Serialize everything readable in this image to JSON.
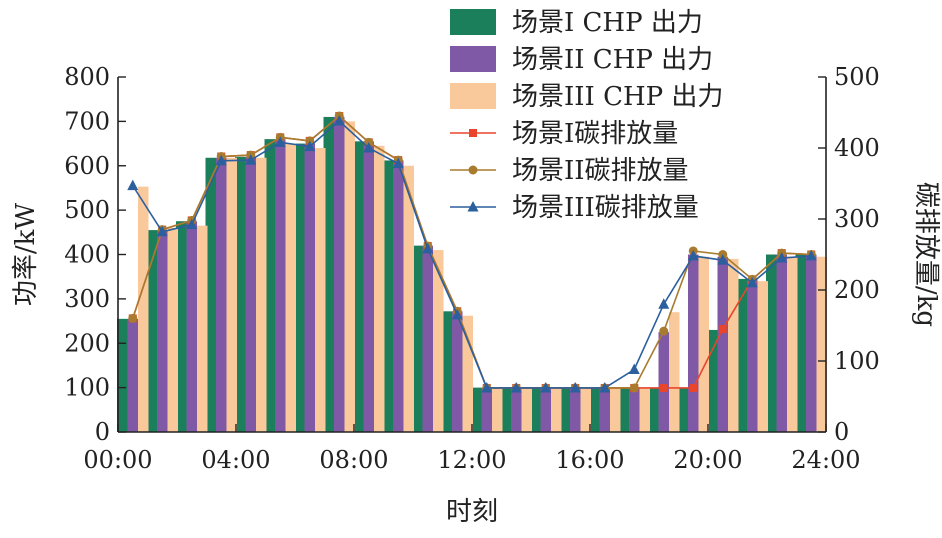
{
  "chart_data": {
    "type": "bar",
    "title": "",
    "xlabel": "时刻",
    "ylabel": "功率/kW",
    "y2label": "碳排放量/kg",
    "ylim": [
      0,
      800
    ],
    "y2lim": [
      0,
      500
    ],
    "yticks": [
      0,
      100,
      200,
      300,
      400,
      500,
      600,
      700,
      800
    ],
    "y2ticks": [
      0,
      100,
      200,
      300,
      400,
      500
    ],
    "xlim": [
      0,
      24
    ],
    "xticks": [
      0,
      4,
      8,
      12,
      16,
      20,
      24
    ],
    "xtick_labels": [
      "00:00",
      "04:00",
      "08:00",
      "12:00",
      "16:00",
      "20:00",
      "24:00"
    ],
    "categories": [
      "1",
      "2",
      "3",
      "4",
      "5",
      "6",
      "7",
      "8",
      "9",
      "10",
      "11",
      "12",
      "13",
      "14",
      "15",
      "16",
      "17",
      "18",
      "19",
      "20",
      "21",
      "22",
      "23",
      "24"
    ],
    "legend_position": "top-right",
    "bar_series": [
      {
        "name": "场景I CHP 出力",
        "color": "#1a7f5a",
        "values": [
          255,
          455,
          475,
          618,
          620,
          660,
          650,
          710,
          655,
          612,
          420,
          272,
          100,
          100,
          100,
          100,
          100,
          100,
          100,
          100,
          230,
          345,
          400,
          400
        ]
      },
      {
        "name": "场景II CHP 出力",
        "color": "#8059a6",
        "values": [
          255,
          455,
          475,
          618,
          620,
          660,
          650,
          710,
          655,
          612,
          420,
          272,
          100,
          100,
          100,
          100,
          100,
          100,
          225,
          400,
          395,
          345,
          400,
          400
        ]
      },
      {
        "name": "场景III CHP 出力",
        "color": "#f9c99b",
        "values": [
          553,
          460,
          465,
          618,
          618,
          650,
          640,
          700,
          645,
          600,
          410,
          262,
          100,
          100,
          100,
          100,
          100,
          100,
          270,
          395,
          390,
          340,
          395,
          395
        ]
      }
    ],
    "line_series": [
      {
        "name": "场景I碳排放量",
        "color": "#e8452c",
        "marker": "square",
        "x": [
          1,
          2,
          3,
          4,
          5,
          6,
          7,
          8,
          9,
          10,
          11,
          12,
          13,
          14,
          15,
          16,
          17,
          18,
          19,
          20,
          21,
          22,
          23,
          24
        ],
        "values": [
          160,
          285,
          298,
          388,
          390,
          415,
          410,
          445,
          408,
          383,
          262,
          170,
          62,
          62,
          62,
          62,
          62,
          62,
          62,
          62,
          145,
          215,
          252,
          250
        ]
      },
      {
        "name": "场景II碳排放量",
        "color": "#a87b2e",
        "marker": "circle",
        "x": [
          1,
          2,
          3,
          4,
          5,
          6,
          7,
          8,
          9,
          10,
          11,
          12,
          13,
          14,
          15,
          16,
          17,
          18,
          19,
          20,
          21,
          22,
          23,
          24
        ],
        "values": [
          160,
          285,
          298,
          388,
          390,
          415,
          410,
          445,
          408,
          383,
          262,
          170,
          62,
          62,
          62,
          62,
          62,
          62,
          142,
          255,
          250,
          215,
          252,
          250
        ]
      },
      {
        "name": "场景III碳排放量",
        "color": "#2b5f9e",
        "marker": "triangle",
        "x": [
          1,
          2,
          3,
          4,
          5,
          6,
          7,
          8,
          9,
          10,
          11,
          12,
          13,
          14,
          15,
          16,
          17,
          18,
          19,
          20,
          21,
          22,
          23,
          24
        ],
        "values": [
          347,
          282,
          292,
          382,
          383,
          408,
          402,
          438,
          400,
          378,
          258,
          165,
          62,
          62,
          62,
          62,
          62,
          88,
          180,
          248,
          242,
          210,
          245,
          248
        ]
      }
    ]
  }
}
